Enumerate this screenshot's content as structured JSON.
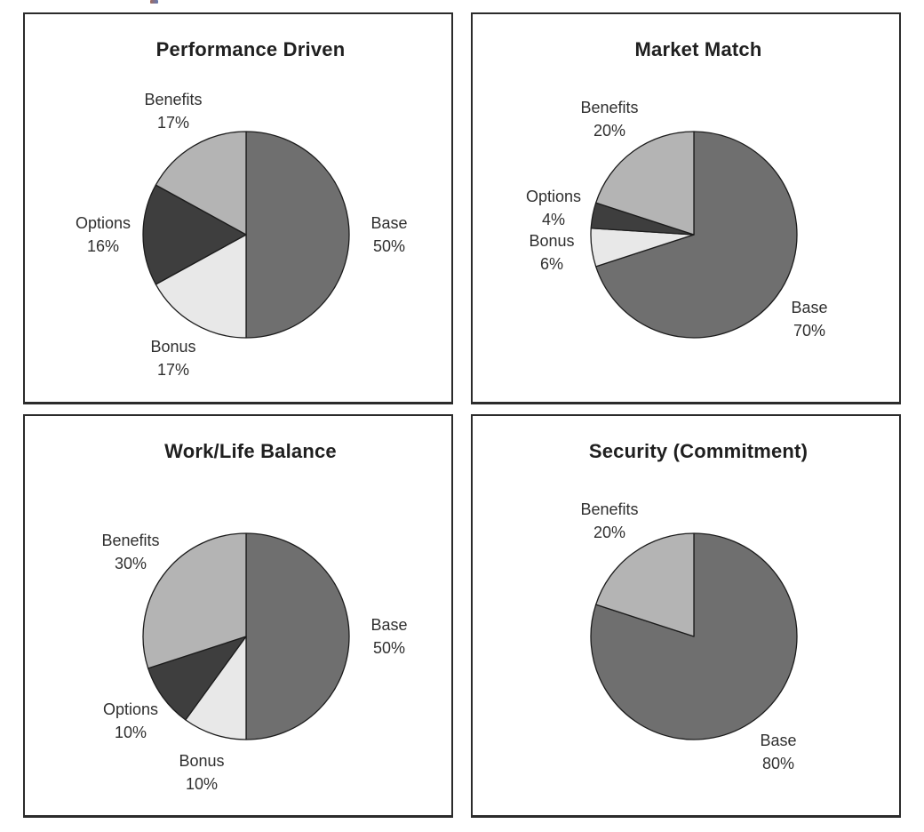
{
  "page": {
    "background": "#ffffff"
  },
  "palette": {
    "Base": "#6f6f6f",
    "Bonus": "#e8e8e8",
    "Options": "#3e3e3e",
    "Benefits": "#b4b4b4",
    "slice_stroke": "#1c1c1c",
    "panel_border": "#2b2b2b",
    "text": "#2f2f2f"
  },
  "chart_data": [
    {
      "type": "pie",
      "title": "Performance Driven",
      "start_angle_deg": 0,
      "direction": "clockwise",
      "labels_position": "outside",
      "legend": "none",
      "slices": [
        {
          "label": "Base",
          "value": 50,
          "display": "50%"
        },
        {
          "label": "Bonus",
          "value": 17,
          "display": "17%"
        },
        {
          "label": "Options",
          "value": 16,
          "display": "16%"
        },
        {
          "label": "Benefits",
          "value": 17,
          "display": "17%"
        }
      ]
    },
    {
      "type": "pie",
      "title": "Market Match",
      "start_angle_deg": 0,
      "direction": "clockwise",
      "labels_position": "outside",
      "legend": "none",
      "slices": [
        {
          "label": "Base",
          "value": 70,
          "display": "70%"
        },
        {
          "label": "Bonus",
          "value": 6,
          "display": "6%"
        },
        {
          "label": "Options",
          "value": 4,
          "display": "4%"
        },
        {
          "label": "Benefits",
          "value": 20,
          "display": "20%"
        }
      ]
    },
    {
      "type": "pie",
      "title": "Work/Life Balance",
      "start_angle_deg": 0,
      "direction": "clockwise",
      "labels_position": "outside",
      "legend": "none",
      "slices": [
        {
          "label": "Base",
          "value": 50,
          "display": "50%"
        },
        {
          "label": "Bonus",
          "value": 10,
          "display": "10%"
        },
        {
          "label": "Options",
          "value": 10,
          "display": "10%"
        },
        {
          "label": "Benefits",
          "value": 30,
          "display": "30%"
        }
      ]
    },
    {
      "type": "pie",
      "title": "Security (Commitment)",
      "start_angle_deg": 0,
      "direction": "clockwise",
      "labels_position": "outside",
      "legend": "none",
      "slices": [
        {
          "label": "Base",
          "value": 80,
          "display": "80%"
        },
        {
          "label": "Benefits",
          "value": 20,
          "display": "20%"
        }
      ]
    }
  ]
}
